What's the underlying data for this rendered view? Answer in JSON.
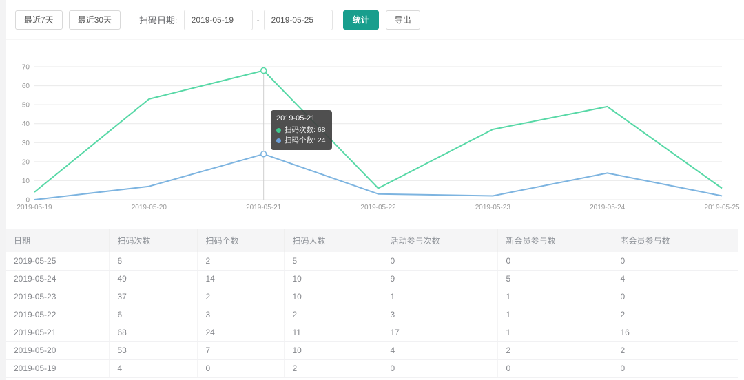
{
  "toolbar": {
    "last7_label": "最近7天",
    "last30_label": "最近30天",
    "date_label": "扫码日期:",
    "date_from": "2019-05-19",
    "date_to": "2019-05-25",
    "range_separator": "-",
    "stats_label": "统计",
    "export_label": "导出",
    "accent_color": "#189e8d"
  },
  "chart_data": {
    "type": "line",
    "x": [
      "2019-05-19",
      "2019-05-20",
      "2019-05-21",
      "2019-05-22",
      "2019-05-23",
      "2019-05-24",
      "2019-05-25"
    ],
    "series": [
      {
        "name": "扫码次数",
        "color": "#57d8a6",
        "values": [
          4,
          53,
          68,
          6,
          37,
          49,
          6
        ]
      },
      {
        "name": "扫码个数",
        "color": "#7db4e0",
        "values": [
          0,
          7,
          24,
          3,
          2,
          14,
          2
        ]
      }
    ],
    "ylim": [
      0,
      70
    ],
    "ytick_step": 10,
    "grid": true,
    "legend": "none",
    "grid_color": "#e9e9e9",
    "axis_text_color": "#999999",
    "hover": {
      "index": 2,
      "title": "2019-05-21",
      "entries": [
        {
          "label": "扫码次数",
          "value": "68",
          "dot_color": "#3fc98f"
        },
        {
          "label": "扫码个数",
          "value": "24",
          "dot_color": "#6b9fd8"
        }
      ]
    }
  },
  "table": {
    "columns": [
      "日期",
      "扫码次数",
      "扫码个数",
      "扫码人数",
      "活动参与次数",
      "新会员参与数",
      "老会员参与数"
    ],
    "rows": [
      [
        "2019-05-25",
        "6",
        "2",
        "5",
        "0",
        "0",
        "0"
      ],
      [
        "2019-05-24",
        "49",
        "14",
        "10",
        "9",
        "5",
        "4"
      ],
      [
        "2019-05-23",
        "37",
        "2",
        "10",
        "1",
        "1",
        "0"
      ],
      [
        "2019-05-22",
        "6",
        "3",
        "2",
        "3",
        "1",
        "2"
      ],
      [
        "2019-05-21",
        "68",
        "24",
        "11",
        "17",
        "1",
        "16"
      ],
      [
        "2019-05-20",
        "53",
        "7",
        "10",
        "4",
        "2",
        "2"
      ],
      [
        "2019-05-19",
        "4",
        "0",
        "2",
        "0",
        "0",
        "0"
      ]
    ]
  }
}
